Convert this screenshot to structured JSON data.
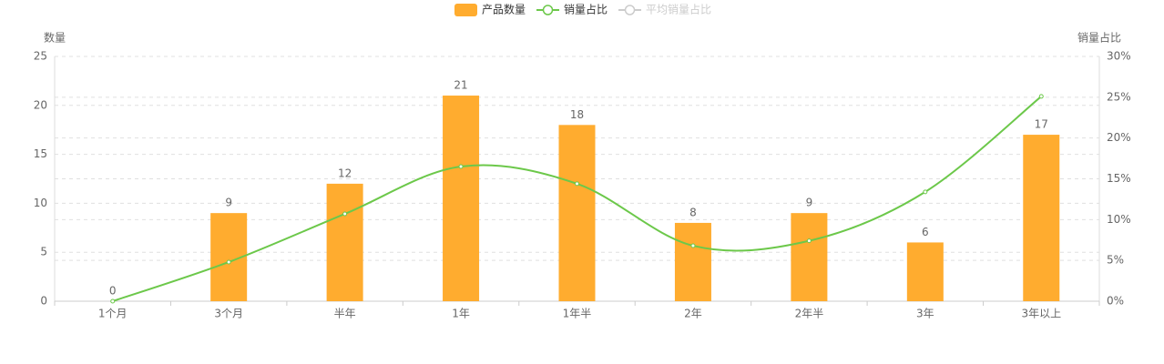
{
  "chart_data": {
    "type": "bar",
    "y_label": "数量",
    "y2_label": "销量占比",
    "categories": [
      "1个月",
      "3个月",
      "半年",
      "1年",
      "1年半",
      "2年",
      "2年半",
      "3年",
      "3年以上"
    ],
    "series": [
      {
        "name": "产品数量",
        "type": "bar",
        "color": "#ffac2f",
        "values": [
          0,
          9,
          12,
          21,
          18,
          8,
          9,
          6,
          17
        ]
      },
      {
        "name": "销量占比",
        "type": "line",
        "smooth": true,
        "axis": "y2",
        "color": "#6cc84a",
        "values": [
          0,
          4.8,
          10.7,
          16.5,
          14.4,
          6.8,
          7.4,
          13.4,
          25.1
        ]
      },
      {
        "name": "平均销量占比",
        "type": "line",
        "axis": "y2",
        "color": "#cccccc",
        "hidden": true
      }
    ],
    "ylim": [
      0,
      25
    ],
    "yticks": [
      0,
      5,
      10,
      15,
      20,
      25
    ],
    "y2lim": [
      0,
      30
    ],
    "y2ticks": [
      {
        "value": 0,
        "label": "0%"
      },
      {
        "value": 5,
        "label": "5%"
      },
      {
        "value": 10,
        "label": "10%"
      },
      {
        "value": 15,
        "label": "15%"
      },
      {
        "value": 20,
        "label": "20%"
      },
      {
        "value": 25,
        "label": "25%"
      },
      {
        "value": 30,
        "label": "30%"
      }
    ],
    "grid": true,
    "legend": "top"
  }
}
